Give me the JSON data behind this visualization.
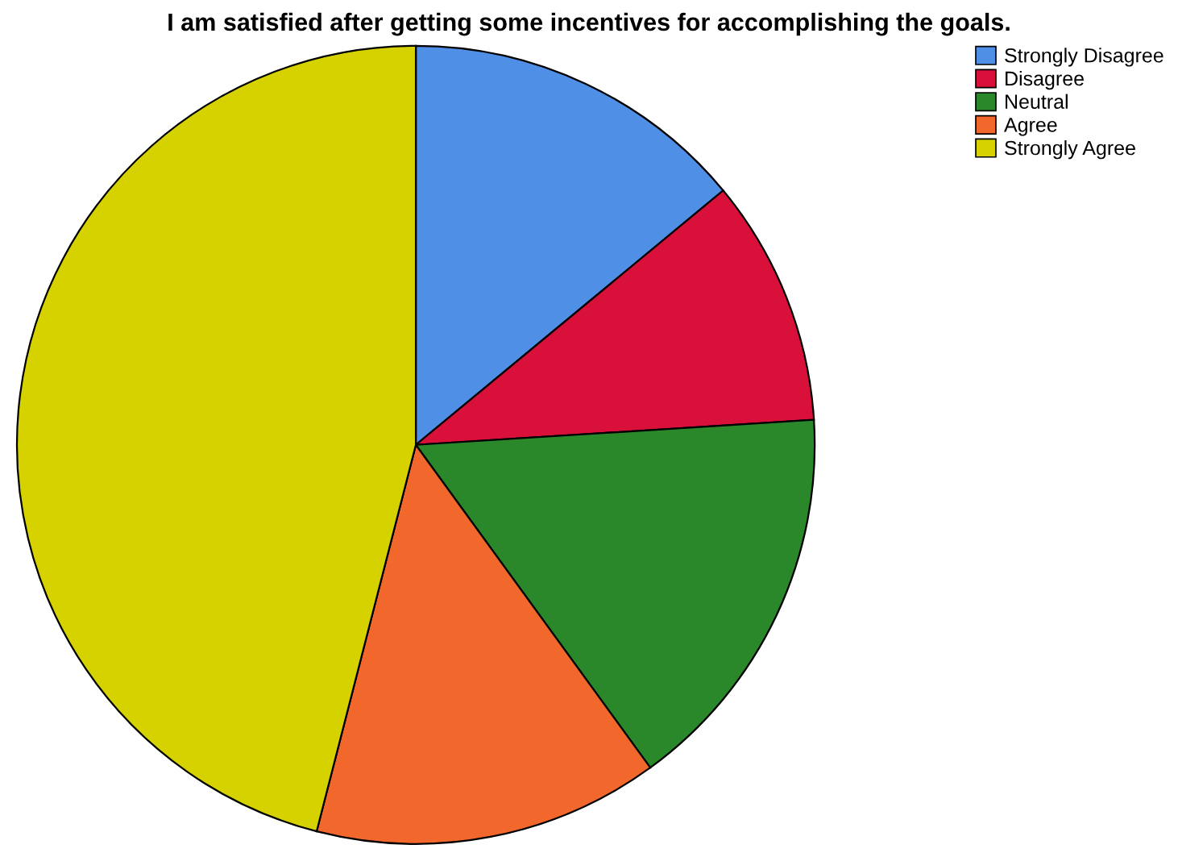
{
  "chart_data": {
    "type": "pie",
    "title": "I am satisfied after getting some incentives for accomplishing the goals.",
    "categories": [
      "Strongly Disagree",
      "Disagree",
      "Neutral",
      "Agree",
      "Strongly Agree"
    ],
    "values": [
      14,
      10,
      16,
      14,
      46
    ],
    "colors": [
      "#4f8fe6",
      "#d8103a",
      "#2a882a",
      "#f2682c",
      "#d6d200"
    ],
    "legend": "top right"
  }
}
